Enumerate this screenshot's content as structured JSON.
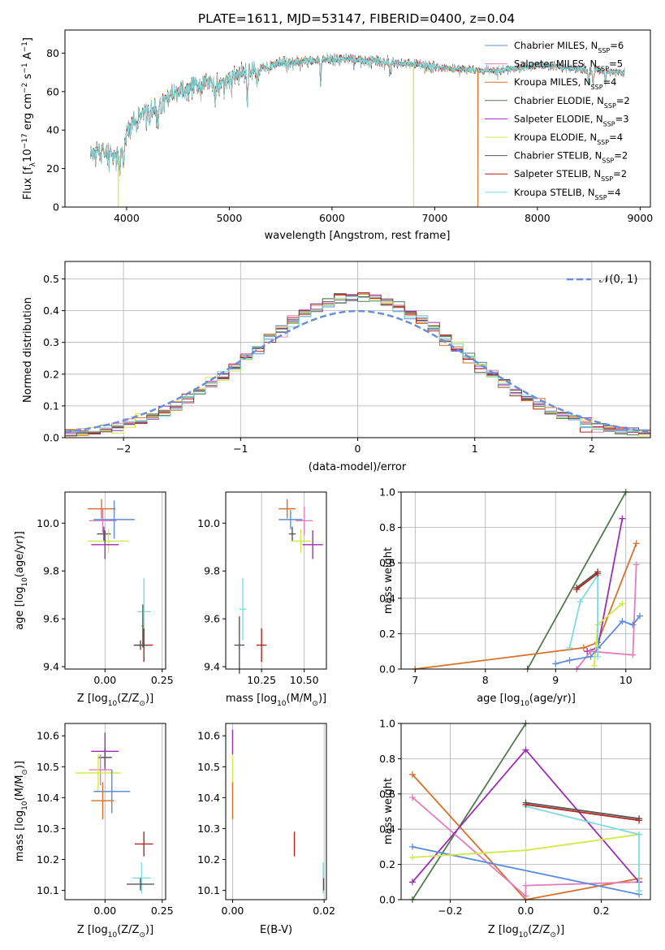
{
  "figure_title": "PLATE=1611, MJD=53147, FIBERID=0400, z=0.04",
  "colors": {
    "chabrier_miles": "#5b8ddb",
    "salpeter_miles": "#e37dbd",
    "kroupa_miles": "#d9702a",
    "chabrier_elodie": "#4f7a4f",
    "salpeter_elodie": "#9b2fb3",
    "kroupa_elodie": "#d3e84a",
    "chabrier_stelib": "#555555",
    "salpeter_stelib": "#b3261e",
    "kroupa_stelib": "#7fdcdc"
  },
  "chart_data": [
    {
      "id": "spectrum",
      "type": "line",
      "xlabel": "wavelength [Angstrom, rest frame]",
      "ylabel_parts": [
        "Flux [f",
        "λ",
        "10",
        "−17",
        " erg cm",
        "−2",
        " s",
        "−1",
        " A",
        "−1",
        "]"
      ],
      "xlim": [
        3400,
        9100
      ],
      "ylim": [
        0,
        92
      ],
      "xticks": [
        4000,
        5000,
        6000,
        7000,
        8000,
        9000
      ],
      "yticks": [
        0,
        20,
        40,
        60,
        80
      ],
      "continuum": [
        [
          3650,
          27
        ],
        [
          3700,
          29
        ],
        [
          3800,
          28
        ],
        [
          3900,
          26
        ],
        [
          3960,
          30
        ],
        [
          4000,
          40
        ],
        [
          4100,
          47
        ],
        [
          4200,
          50
        ],
        [
          4300,
          52
        ],
        [
          4400,
          57
        ],
        [
          4500,
          60
        ],
        [
          4600,
          62
        ],
        [
          4700,
          63
        ],
        [
          4800,
          66
        ],
        [
          4900,
          64
        ],
        [
          5000,
          67
        ],
        [
          5100,
          69
        ],
        [
          5200,
          71
        ],
        [
          5300,
          72
        ],
        [
          5400,
          73
        ],
        [
          5500,
          75
        ],
        [
          5600,
          75
        ],
        [
          5700,
          76
        ],
        [
          5800,
          76
        ],
        [
          5900,
          76
        ],
        [
          6000,
          77
        ],
        [
          6200,
          77
        ],
        [
          6400,
          76
        ],
        [
          6600,
          75
        ],
        [
          6800,
          74
        ],
        [
          7000,
          73
        ],
        [
          7200,
          72
        ],
        [
          7400,
          71
        ],
        [
          7600,
          71
        ],
        [
          7800,
          72
        ],
        [
          8000,
          74
        ],
        [
          8200,
          73
        ],
        [
          8400,
          72
        ],
        [
          8600,
          71
        ],
        [
          8800,
          70
        ],
        [
          8850,
          70
        ]
      ],
      "absorption_lines": [
        [
          3934,
          10
        ],
        [
          3969,
          11
        ],
        [
          4102,
          7
        ],
        [
          4227,
          9
        ],
        [
          4304,
          10
        ],
        [
          4340,
          7
        ],
        [
          4861,
          8
        ],
        [
          5175,
          16
        ],
        [
          5270,
          9
        ],
        [
          5890,
          12
        ],
        [
          6563,
          6
        ],
        [
          8498,
          6
        ],
        [
          8542,
          8
        ],
        [
          8662,
          7
        ]
      ],
      "dropouts": [
        {
          "series": "kroupa_elodie",
          "x": 3920
        },
        {
          "series": "kroupa_elodie",
          "x": 6795
        },
        {
          "series": "kroupa_miles",
          "x": 7420
        }
      ],
      "legend": {
        "placement": "upper right",
        "entries": [
          {
            "key": "chabrier_miles",
            "label": "Chabrier MILES, N",
            "sub": "SSP",
            "suffix": "=6"
          },
          {
            "key": "salpeter_miles",
            "label": "Salpeter MILES, N",
            "sub": "SSP",
            "suffix": "=5"
          },
          {
            "key": "kroupa_miles",
            "label": "Kroupa MILES, N",
            "sub": "SSP",
            "suffix": "=4"
          },
          {
            "key": "chabrier_elodie",
            "label": "Chabrier ELODIE, N",
            "sub": "SSP",
            "suffix": "=2"
          },
          {
            "key": "salpeter_elodie",
            "label": "Salpeter ELODIE, N",
            "sub": "SSP",
            "suffix": "=3"
          },
          {
            "key": "kroupa_elodie",
            "label": "Kroupa ELODIE, N",
            "sub": "SSP",
            "suffix": "=4"
          },
          {
            "key": "chabrier_stelib",
            "label": "Chabrier STELIB, N",
            "sub": "SSP",
            "suffix": "=2"
          },
          {
            "key": "salpeter_stelib",
            "label": "Salpeter STELIB, N",
            "sub": "SSP",
            "suffix": "=2"
          },
          {
            "key": "kroupa_stelib",
            "label": "Kroupa STELIB, N",
            "sub": "SSP",
            "suffix": "=4"
          }
        ]
      }
    },
    {
      "id": "residuals",
      "type": "histogram",
      "xlabel": "(data-model)/error",
      "ylabel": "Normed distribution",
      "xlim": [
        -2.5,
        2.5
      ],
      "ylim": [
        0,
        0.555
      ],
      "xticks": [
        -2,
        -1,
        0,
        1,
        2
      ],
      "yticks": [
        0.0,
        0.1,
        0.2,
        0.3,
        0.4,
        0.5
      ],
      "bin_width": 0.1,
      "grid": true,
      "normal_label": "𝒩(0, 1)",
      "legend_placement": "upper right"
    },
    {
      "id": "age_vs_Z",
      "type": "errorbar",
      "xlabel_parts": [
        "Z [log",
        "10",
        "(Z/Z",
        "⊙",
        ")]"
      ],
      "ylabel_parts": [
        "age  [log",
        "10",
        "(age/yr)]"
      ],
      "xlim": [
        -0.175,
        0.265
      ],
      "ylim": [
        9.39,
        10.13
      ],
      "xticks": [
        0.0,
        0.25
      ],
      "yticks": [
        9.4,
        9.6,
        9.8,
        10.0
      ],
      "points": [
        {
          "key": "kroupa_miles",
          "x": -0.015,
          "xerr": 0.06,
          "y": 10.06,
          "yerr": 0.04
        },
        {
          "key": "salpeter_miles",
          "x": -0.01,
          "xerr": 0.06,
          "y": 10.01,
          "yerr": 0.05
        },
        {
          "key": "chabrier_miles",
          "x": 0.04,
          "xerr": 0.09,
          "y": 10.015,
          "yerr": 0.08
        },
        {
          "key": "chabrier_stelib",
          "x": -0.005,
          "xerr": 0.03,
          "y": 9.955,
          "yerr": 0.03
        },
        {
          "key": "kroupa_elodie",
          "x": 0.015,
          "xerr": 0.09,
          "y": 9.925,
          "yerr": 0.05
        },
        {
          "key": "salpeter_elodie",
          "x": 0.0,
          "xerr": 0.06,
          "y": 9.91,
          "yerr": 0.06
        },
        {
          "key": "kroupa_stelib",
          "x": 0.17,
          "xerr": 0.03,
          "y": 9.63,
          "yerr": 0.14
        },
        {
          "key": "chabrier_elodie",
          "x": 0.165,
          "xerr": 0.005,
          "y": 9.57,
          "yerr": 0.09
        },
        {
          "key": "salpeter_stelib",
          "x": 0.17,
          "xerr": 0.04,
          "y": 9.49,
          "yerr": 0.07
        },
        {
          "key": "chabrier_stelib",
          "x": 0.155,
          "xerr": 0.03,
          "y": 9.49,
          "yerr": 0.02
        }
      ]
    },
    {
      "id": "age_vs_mass",
      "type": "errorbar",
      "xlabel_parts": [
        "mass [log",
        "10",
        "(M/M",
        "⊙",
        ")]"
      ],
      "ylabel_parts": [],
      "xlim": [
        10.04,
        10.63
      ],
      "ylim": [
        9.39,
        10.13
      ],
      "xticks": [
        10.25,
        10.5
      ],
      "xtick_labels": [
        "10.25",
        "10.50"
      ],
      "yticks": [
        9.4,
        9.6,
        9.8,
        10.0
      ],
      "points": [
        {
          "key": "kroupa_miles",
          "x": 10.4,
          "xerr": 0.05,
          "y": 10.06,
          "yerr": 0.04
        },
        {
          "key": "salpeter_miles",
          "x": 10.5,
          "xerr": 0.05,
          "y": 10.01,
          "yerr": 0.06
        },
        {
          "key": "chabrier_miles",
          "x": 10.42,
          "xerr": 0.07,
          "y": 10.015,
          "yerr": 0.04
        },
        {
          "key": "chabrier_stelib",
          "x": 10.43,
          "xerr": 0.02,
          "y": 9.955,
          "yerr": 0.03
        },
        {
          "key": "kroupa_elodie",
          "x": 10.48,
          "xerr": 0.06,
          "y": 9.925,
          "yerr": 0.05
        },
        {
          "key": "salpeter_elodie",
          "x": 10.55,
          "xerr": 0.06,
          "y": 9.91,
          "yerr": 0.06
        },
        {
          "key": "kroupa_stelib",
          "x": 10.14,
          "xerr": 0.02,
          "y": 9.64,
          "yerr": 0.13
        },
        {
          "key": "chabrier_stelib",
          "x": 10.12,
          "xerr": 0.03,
          "y": 9.49,
          "yerr": 0.12
        },
        {
          "key": "salpeter_stelib",
          "x": 10.25,
          "xerr": 0.03,
          "y": 9.49,
          "yerr": 0.07
        }
      ]
    },
    {
      "id": "weight_vs_age",
      "type": "line",
      "xlabel_parts": [
        "age  [log",
        "10",
        "(age/yr)]"
      ],
      "ylabel": "mass weight",
      "xlim": [
        6.8,
        10.35
      ],
      "ylim": [
        0,
        1.0
      ],
      "xticks": [
        7,
        8,
        9,
        10
      ],
      "yticks": [
        0.0,
        0.2,
        0.4,
        0.6,
        0.8,
        1.0
      ],
      "grid": true,
      "series": [
        {
          "key": "chabrier_elodie",
          "x": [
            8.6,
            10.0
          ],
          "y": [
            0.0,
            1.0
          ]
        },
        {
          "key": "kroupa_miles",
          "x": [
            7.0,
            9.4,
            9.6,
            10.15
          ],
          "y": [
            0.0,
            0.12,
            0.15,
            0.71
          ]
        },
        {
          "key": "salpeter_elodie",
          "x": [
            9.45,
            9.6,
            9.95
          ],
          "y": [
            0.1,
            0.12,
            0.85
          ]
        },
        {
          "key": "salpeter_miles",
          "x": [
            9.3,
            9.5,
            10.1,
            10.15
          ],
          "y": [
            0.0,
            0.1,
            0.08,
            0.59
          ]
        },
        {
          "key": "kroupa_elodie",
          "x": [
            9.55,
            9.6,
            9.95
          ],
          "y": [
            0.02,
            0.25,
            0.37
          ]
        },
        {
          "key": "chabrier_miles",
          "x": [
            9.0,
            9.2,
            9.5,
            9.95,
            10.1,
            10.2
          ],
          "y": [
            0.03,
            0.05,
            0.07,
            0.27,
            0.25,
            0.3
          ]
        },
        {
          "key": "kroupa_stelib",
          "x": [
            9.2,
            9.35,
            9.6,
            9.6
          ],
          "y": [
            0.12,
            0.38,
            0.53,
            0.07
          ]
        },
        {
          "key": "chabrier_stelib",
          "x": [
            9.3,
            9.6
          ],
          "y": [
            0.46,
            0.55
          ]
        },
        {
          "key": "salpeter_stelib",
          "x": [
            9.3,
            9.6
          ],
          "y": [
            0.45,
            0.54
          ]
        }
      ]
    },
    {
      "id": "mass_vs_Z",
      "type": "errorbar",
      "xlabel_parts": [
        "Z [log",
        "10",
        "(Z/Z",
        "⊙",
        ")]"
      ],
      "ylabel_parts": [
        "mass [log",
        "10",
        "(M/M",
        "⊙",
        ")]"
      ],
      "xlim": [
        -0.175,
        0.265
      ],
      "ylim": [
        10.07,
        10.64
      ],
      "xticks": [
        0.0,
        0.25
      ],
      "yticks": [
        10.1,
        10.2,
        10.3,
        10.4,
        10.5,
        10.6
      ],
      "points": [
        {
          "key": "salpeter_elodie",
          "x": 0.0,
          "xerr": 0.06,
          "y": 10.55,
          "yerr": 0.06
        },
        {
          "key": "chabrier_stelib",
          "x": 0.0,
          "xerr": 0.03,
          "y": 10.53,
          "yerr": 0.03
        },
        {
          "key": "salpeter_miles",
          "x": -0.02,
          "xerr": 0.05,
          "y": 10.49,
          "yerr": 0.05
        },
        {
          "key": "kroupa_elodie",
          "x": -0.03,
          "xerr": 0.1,
          "y": 10.48,
          "yerr": 0.06
        },
        {
          "key": "chabrier_miles",
          "x": 0.03,
          "xerr": 0.08,
          "y": 10.42,
          "yerr": 0.07
        },
        {
          "key": "kroupa_miles",
          "x": -0.01,
          "xerr": 0.05,
          "y": 10.39,
          "yerr": 0.06
        },
        {
          "key": "salpeter_stelib",
          "x": 0.17,
          "xerr": 0.04,
          "y": 10.25,
          "yerr": 0.04
        },
        {
          "key": "kroupa_stelib",
          "x": 0.16,
          "xerr": 0.04,
          "y": 10.14,
          "yerr": 0.05
        },
        {
          "key": "chabrier_stelib",
          "x": 0.155,
          "xerr": 0.06,
          "y": 10.12,
          "yerr": 0.02
        }
      ]
    },
    {
      "id": "mass_vs_ebv",
      "type": "errorbar",
      "xlabel": "E(B-V)",
      "ylabel_parts": [],
      "xlim": [
        -0.0015,
        0.0205
      ],
      "ylim": [
        10.07,
        10.64
      ],
      "xticks": [
        0.0,
        0.02
      ],
      "yticks": [
        10.1,
        10.2,
        10.3,
        10.4,
        10.5,
        10.6
      ],
      "points": [
        {
          "key": "salpeter_elodie",
          "x": 0.0,
          "xerr": 0.0,
          "y": 10.58,
          "yerr": 0.04
        },
        {
          "key": "kroupa_elodie",
          "x": 0.0,
          "xerr": 0.0,
          "y": 10.48,
          "yerr": 0.06
        },
        {
          "key": "kroupa_miles",
          "x": 0.0,
          "xerr": 0.0,
          "y": 10.39,
          "yerr": 0.06
        },
        {
          "key": "salpeter_stelib",
          "x": 0.0135,
          "xerr": 0.0,
          "y": 10.25,
          "yerr": 0.04
        },
        {
          "key": "kroupa_stelib",
          "x": 0.0198,
          "xerr": 0.0,
          "y": 10.14,
          "yerr": 0.05
        },
        {
          "key": "chabrier_stelib",
          "x": 0.0199,
          "xerr": 0.0,
          "y": 10.12,
          "yerr": 0.02
        }
      ]
    },
    {
      "id": "weight_vs_Z",
      "type": "line",
      "xlabel_parts": [
        "Z [log",
        "10",
        "(Z/Z",
        "⊙",
        ")]"
      ],
      "ylabel": "mass weight",
      "xlim": [
        -0.33,
        0.33
      ],
      "ylim": [
        0,
        1.0
      ],
      "xticks": [
        -0.2,
        0.0,
        0.2
      ],
      "xtick_labels": [
        "−0.2",
        "0.0",
        "0.2"
      ],
      "yticks": [
        0.0,
        0.2,
        0.4,
        0.6,
        0.8,
        1.0
      ],
      "grid": true,
      "series": [
        {
          "key": "chabrier_elodie",
          "x": [
            -0.3,
            0.0
          ],
          "y": [
            0.0,
            1.0
          ]
        },
        {
          "key": "kroupa_miles",
          "x": [
            -0.3,
            0.0,
            0.3
          ],
          "y": [
            0.71,
            0.0,
            0.12
          ]
        },
        {
          "key": "salpeter_miles",
          "x": [
            -0.3,
            0.0,
            0.0,
            0.3
          ],
          "y": [
            0.58,
            0.02,
            0.08,
            0.1
          ]
        },
        {
          "key": "salpeter_elodie",
          "x": [
            -0.3,
            0.0,
            0.3
          ],
          "y": [
            0.1,
            0.85,
            0.1
          ]
        },
        {
          "key": "chabrier_miles",
          "x": [
            -0.3,
            0.3
          ],
          "y": [
            0.3,
            0.03
          ]
        },
        {
          "key": "kroupa_elodie",
          "x": [
            -0.3,
            0.0,
            0.3
          ],
          "y": [
            0.24,
            0.28,
            0.37
          ]
        },
        {
          "key": "kroupa_stelib",
          "x": [
            0.0,
            0.3,
            0.3
          ],
          "y": [
            0.53,
            0.37,
            0.05
          ]
        },
        {
          "key": "chabrier_stelib",
          "x": [
            0.0,
            0.3
          ],
          "y": [
            0.55,
            0.46
          ]
        },
        {
          "key": "salpeter_stelib",
          "x": [
            0.0,
            0.3
          ],
          "y": [
            0.54,
            0.45
          ]
        }
      ]
    }
  ]
}
